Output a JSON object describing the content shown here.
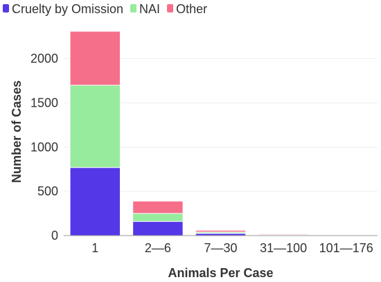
{
  "chart_data": {
    "type": "bar",
    "stacked": true,
    "categories": [
      "1",
      "2—6",
      "7—30",
      "31—100",
      "101—176"
    ],
    "series": [
      {
        "name": "Cruelty by Omission",
        "color": "#5438e8",
        "values": [
          770,
          160,
          25,
          5,
          1
        ]
      },
      {
        "name": "NAI",
        "color": "#97eb9c",
        "values": [
          930,
          90,
          15,
          5,
          1
        ]
      },
      {
        "name": "Other",
        "color": "#f66f8a",
        "values": [
          610,
          140,
          20,
          10,
          2
        ]
      }
    ],
    "xlabel": "Animals Per Case",
    "ylabel": "Number of Cases",
    "ylim": [
      0,
      2350
    ],
    "yticks": [
      0,
      500,
      1000,
      1500,
      2000
    ],
    "grid": true,
    "legend_position": "top-left"
  }
}
